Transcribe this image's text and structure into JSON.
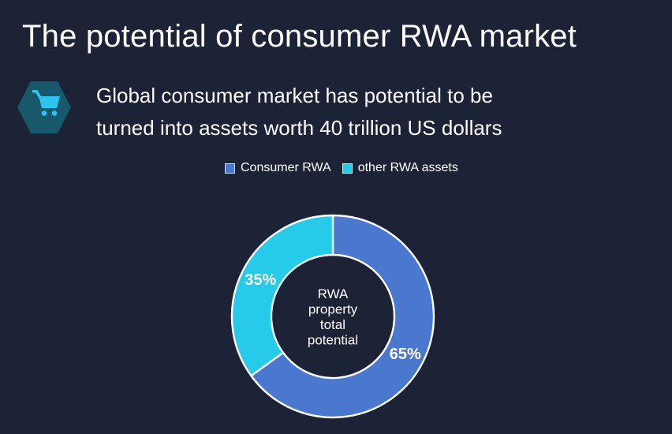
{
  "page": {
    "title": "The potential of consumer RWA market",
    "background_color": "#1c2336",
    "text_color": "#ffffff"
  },
  "callout": {
    "icon": "shopping-cart-icon",
    "hexagon_color": "#17586d",
    "cart_color": "#2cc3ec",
    "line1": "Global consumer market has potential to be",
    "line2": "turned into assets worth 40 trillion US dollars"
  },
  "chart_data": {
    "type": "pie",
    "subtype": "donut",
    "title": "",
    "center_label_lines": [
      "RWA",
      "property",
      "total",
      "potential"
    ],
    "start_angle_deg": 0,
    "direction": "clockwise",
    "legend_position": "top",
    "stroke_color": "#ffffff",
    "outer_radius_px": 128,
    "inner_radius_px": 78,
    "series": [
      {
        "name": "Consumer RWA",
        "value": 65,
        "label": "65%",
        "color": "#4a78ce"
      },
      {
        "name": "other RWA assets",
        "value": 35,
        "label": "35%",
        "color": "#25cbe8"
      }
    ]
  }
}
